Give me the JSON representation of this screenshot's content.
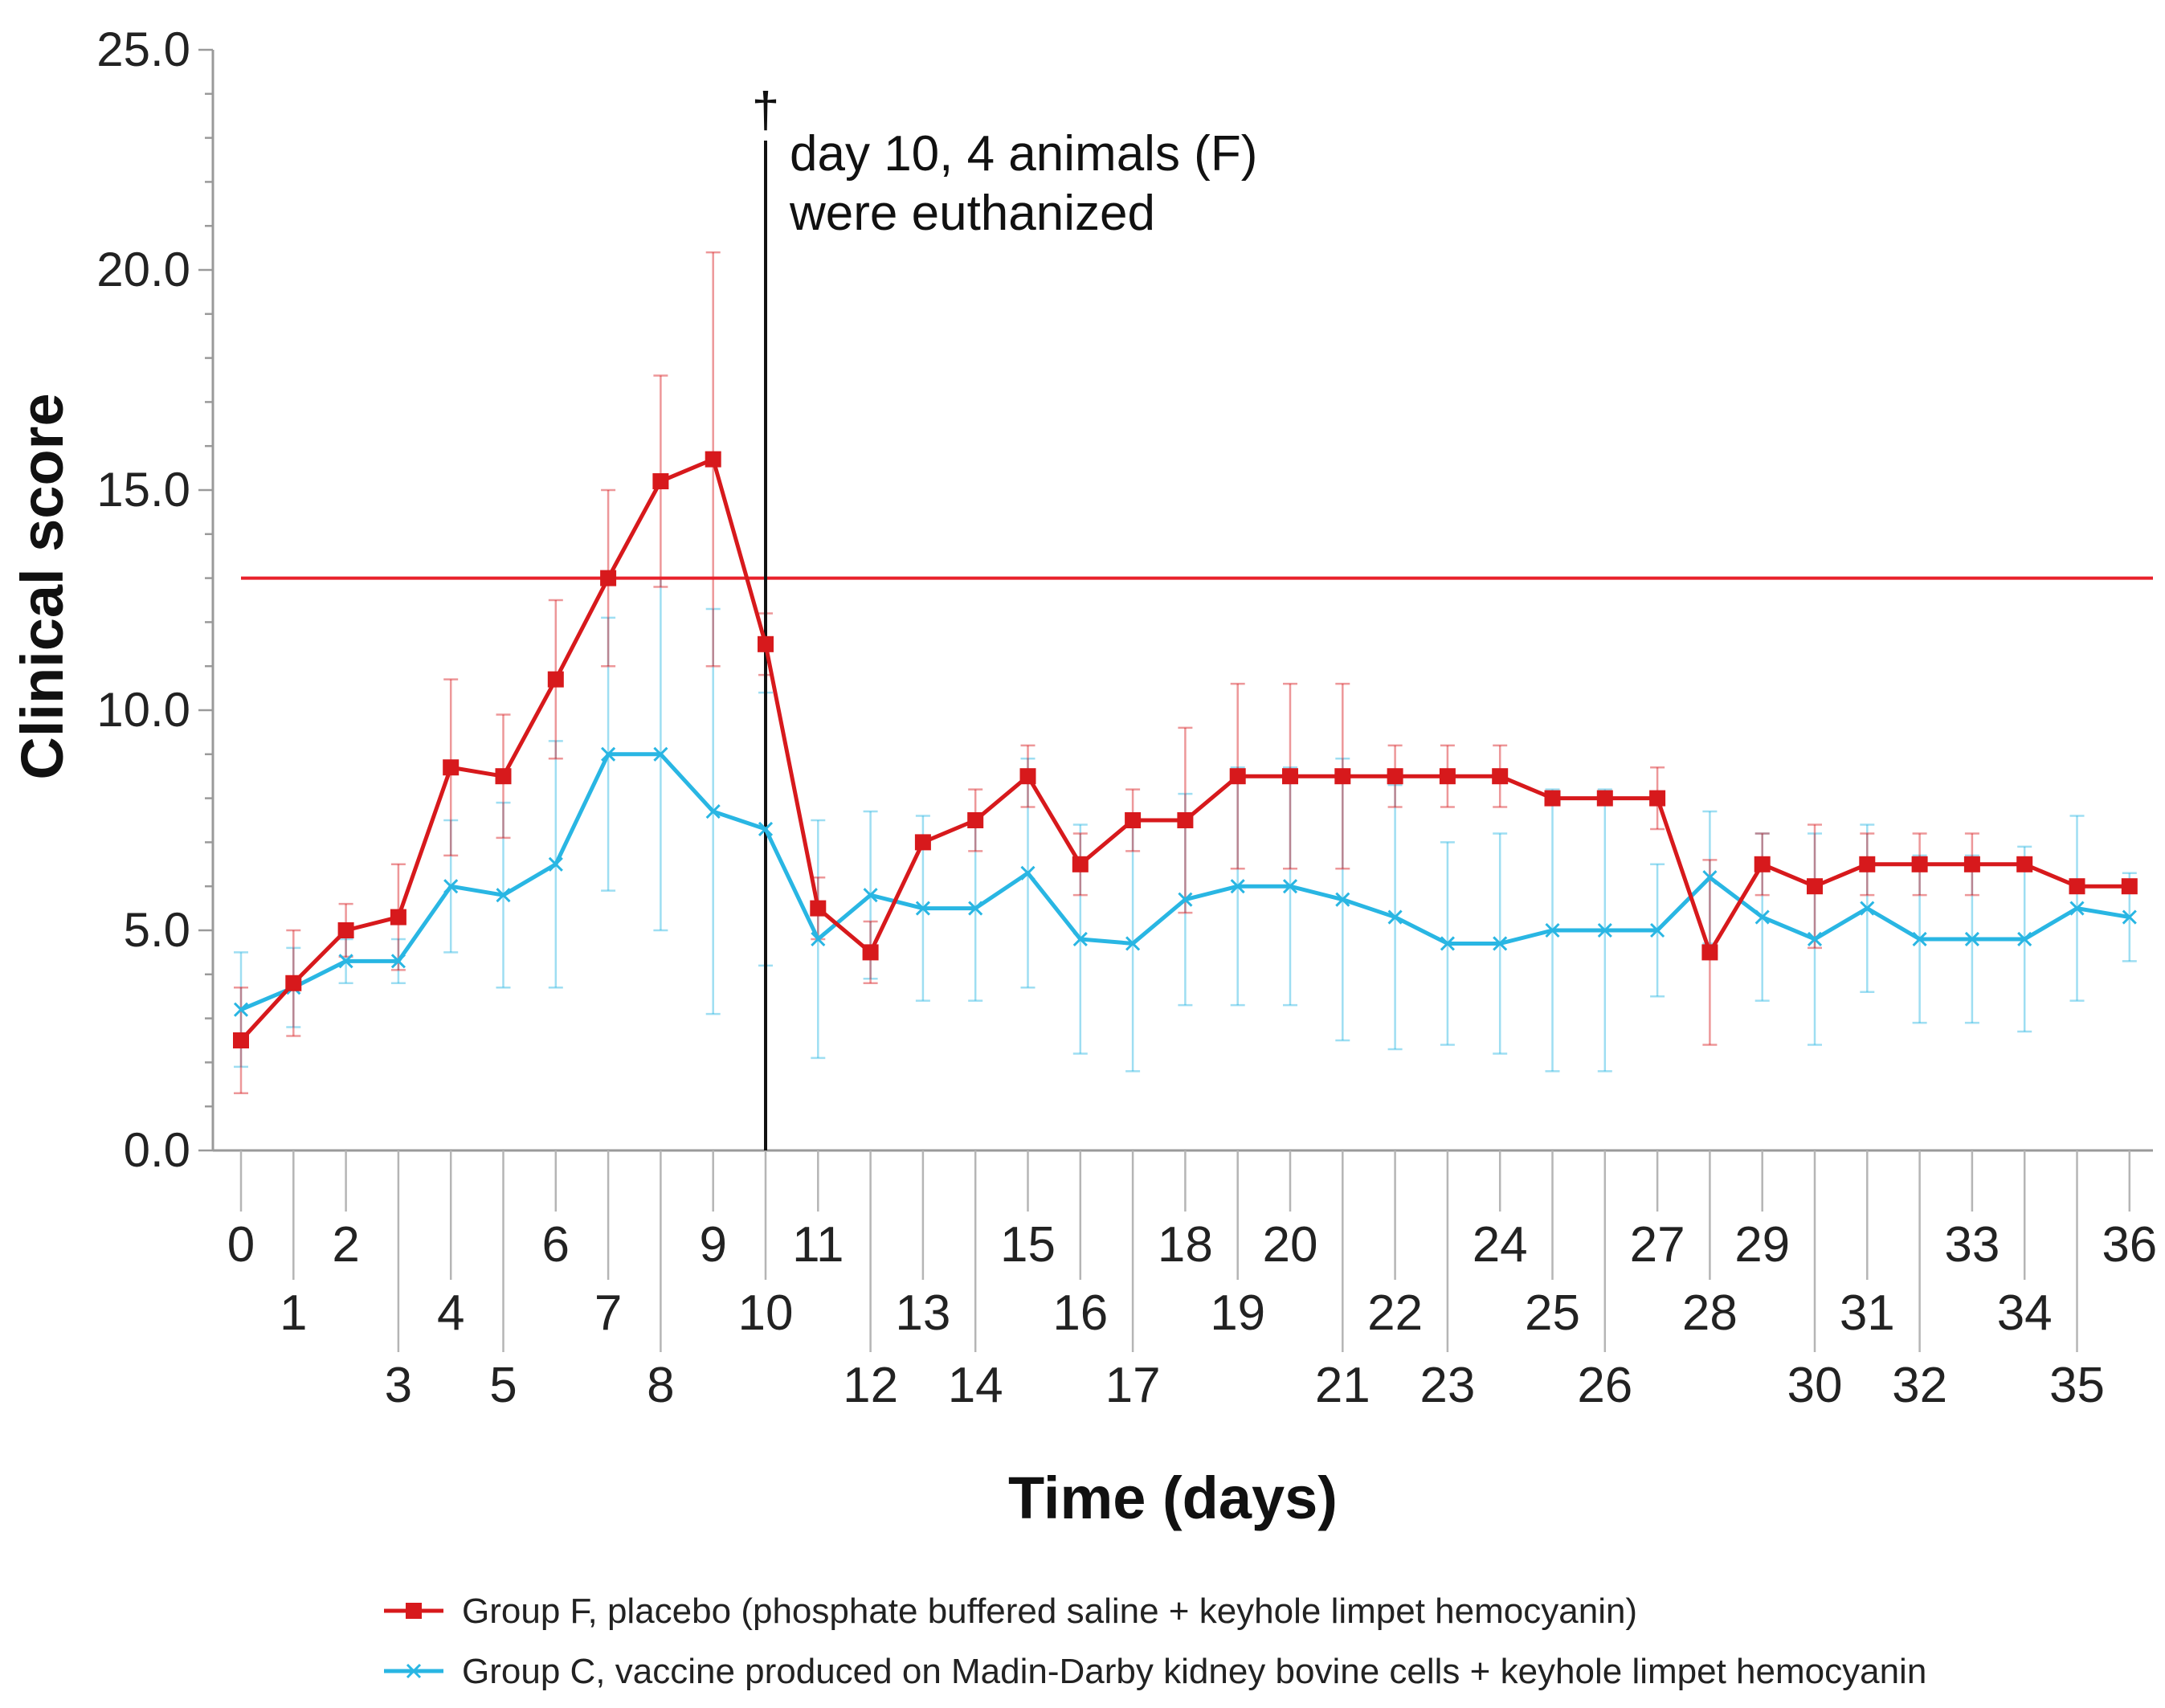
{
  "chart_data": {
    "type": "line",
    "xlabel": "Time (days)",
    "ylabel": "Clinical score",
    "ylim": [
      0,
      25
    ],
    "yticks": [
      "0.0",
      "5.0",
      "10.0",
      "15.0",
      "20.0",
      "25.0"
    ],
    "x": [
      0,
      1,
      2,
      3,
      4,
      5,
      6,
      7,
      8,
      9,
      10,
      11,
      12,
      13,
      14,
      15,
      16,
      17,
      18,
      19,
      20,
      21,
      22,
      23,
      24,
      25,
      26,
      27,
      28,
      29,
      30,
      31,
      32,
      33,
      34,
      35,
      36
    ],
    "x_tick_labels": [
      "0",
      "1",
      "2",
      "3",
      "4",
      "5",
      "6",
      "7",
      "8",
      "9",
      "10",
      "11",
      "12",
      "13",
      "14",
      "15",
      "16",
      "17",
      "18",
      "19",
      "20",
      "21",
      "22",
      "23",
      "24",
      "25",
      "26",
      "27",
      "28",
      "29",
      "30",
      "31",
      "32",
      "33",
      "34",
      "35",
      "36"
    ],
    "threshold": {
      "value": 13,
      "color": "#e8212b"
    },
    "vline": {
      "x": 10,
      "marker": "†",
      "text_line1": "day 10, 4 animals (F)",
      "text_line2": "were euthanized"
    },
    "series": [
      {
        "name": "Group F, placebo (phosphate buffered saline + keyhole limpet hemocyanin)",
        "color": "#d7191c",
        "marker": "square",
        "values": [
          2.5,
          3.8,
          5.0,
          5.3,
          8.7,
          8.5,
          10.7,
          13.0,
          15.2,
          15.7,
          11.5,
          5.5,
          4.5,
          7.0,
          7.5,
          8.5,
          6.5,
          7.5,
          7.5,
          8.5,
          8.5,
          8.5,
          8.5,
          8.5,
          8.5,
          8.0,
          8.0,
          8.0,
          4.5,
          6.5,
          6.0,
          6.5,
          6.5,
          6.5,
          6.5,
          6.0,
          6.0
        ],
        "errors": [
          1.2,
          1.2,
          0.6,
          1.2,
          2.0,
          1.4,
          1.8,
          2.0,
          2.4,
          4.7,
          0.7,
          0.7,
          0.7,
          0.0,
          0.7,
          0.7,
          0.7,
          0.7,
          2.1,
          2.1,
          2.1,
          2.1,
          0.7,
          0.7,
          0.7,
          0.0,
          0.0,
          0.7,
          2.1,
          0.7,
          1.4,
          0.7,
          0.7,
          0.7,
          0.0,
          0.0,
          0.0
        ]
      },
      {
        "name": "Group C, vaccine produced on Madin-Darby kidney bovine cells + keyhole limpet hemocyanin",
        "color": "#29b6e3",
        "marker": "x",
        "values": [
          3.2,
          3.7,
          4.3,
          4.3,
          6.0,
          5.8,
          6.5,
          9.0,
          9.0,
          7.7,
          7.3,
          4.8,
          5.8,
          5.5,
          5.5,
          6.3,
          4.8,
          4.7,
          5.7,
          6.0,
          6.0,
          5.7,
          5.3,
          4.7,
          4.7,
          5.0,
          5.0,
          5.0,
          6.2,
          5.3,
          4.8,
          5.5,
          4.8,
          4.8,
          4.8,
          5.5,
          5.3
        ],
        "errors": [
          1.3,
          0.9,
          0.5,
          0.5,
          1.5,
          2.1,
          2.8,
          3.1,
          4.0,
          4.6,
          3.1,
          2.7,
          1.9,
          2.1,
          2.1,
          2.6,
          2.6,
          2.9,
          2.4,
          2.7,
          2.7,
          3.2,
          3.0,
          2.3,
          2.5,
          3.2,
          3.2,
          1.5,
          1.5,
          1.9,
          2.4,
          1.9,
          1.9,
          1.9,
          2.1,
          2.1,
          1.0
        ]
      }
    ]
  },
  "legend": [
    {
      "label": "Group F, placebo (phosphate buffered saline + keyhole limpet hemocyanin)",
      "color": "#d7191c",
      "marker": "square"
    },
    {
      "label": "Group C, vaccine produced on Madin-Darby kidney bovine cells + keyhole limpet hemocyanin",
      "color": "#29b6e3",
      "marker": "x"
    }
  ]
}
